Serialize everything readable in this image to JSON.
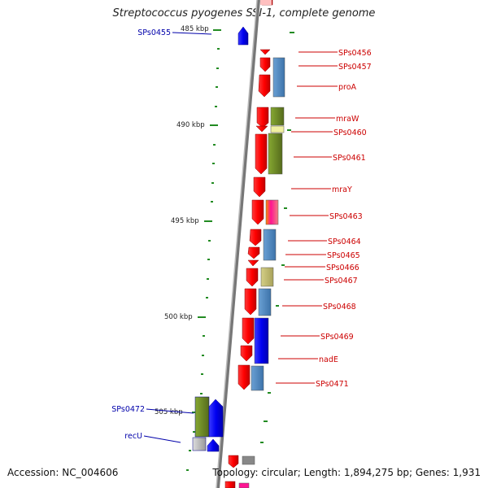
{
  "title": "Streptococcus pyogenes SSI-1, complete genome",
  "accession": "Accession: NC_004606",
  "topology": "Topology: circular; Length: 1,894,275 bp; Genes: 1,931",
  "colors": {
    "forward_gene": "#ff0000",
    "reverse_gene": "#0000ee",
    "label_right": "#cc0000",
    "label_left": "#0000aa",
    "ruler": "#808080",
    "tick": "#228b22",
    "cog_blue": "#4f86bd",
    "cog_olive": "#6b8e23",
    "cog_khaki": "#bdb76b"
  },
  "ruler_labels": [
    "485 kbp",
    "490 kbp",
    "495 kbp",
    "500 kbp",
    "505 kbp"
  ],
  "genes_right": [
    "SPs0456",
    "SPs0457",
    "proA",
    "mraW",
    "SPs0460",
    "SPs0461",
    "mraY",
    "SPs0463",
    "SPs0464",
    "SPs0465",
    "SPs0466",
    "SPs0467",
    "SPs0468",
    "SPs0469",
    "nadE",
    "SPs0471"
  ],
  "genes_left": [
    "SPs0455",
    "SPs0472",
    "recU"
  ]
}
